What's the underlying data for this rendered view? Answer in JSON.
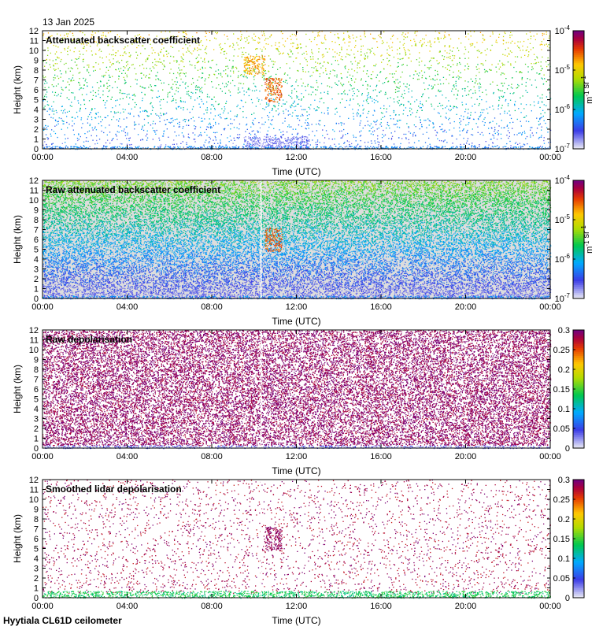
{
  "header": {
    "date": "13 Jan 2025"
  },
  "footer": {
    "site": "Hyytiala CL61D ceilometer"
  },
  "chart_data": [
    {
      "type": "heatmap",
      "title": "Attenuated backscatter coefficient",
      "xlabel": "Time (UTC)",
      "ylabel": "Height (km)",
      "xticks": [
        "00:00",
        "04:00",
        "08:00",
        "12:00",
        "16:00",
        "20:00",
        "00:00"
      ],
      "yticks": [
        "0",
        "1",
        "2",
        "3",
        "4",
        "5",
        "6",
        "7",
        "8",
        "9",
        "10",
        "11",
        "12"
      ],
      "ylim": [
        0,
        12
      ],
      "xlim_hours": [
        0,
        24
      ],
      "colorbar": {
        "scale": "log",
        "ticks": [
          "10^-7",
          "10^-6",
          "10^-5",
          "10^-4"
        ],
        "unit": "m^-1 sr^-1"
      },
      "background": "#ffffff",
      "features": [
        {
          "name": "sparse speckle",
          "t0": 0,
          "t1": 24,
          "h0": 0.3,
          "h1": 12,
          "level": 0.5
        },
        {
          "name": "boundary layer",
          "t0": 9.5,
          "t1": 12.6,
          "h0": 0,
          "h1": 1.3,
          "level": 0.1
        },
        {
          "name": "cloud",
          "t0": 10.5,
          "t1": 11.3,
          "h0": 4.8,
          "h1": 7.2,
          "level": 0.82
        },
        {
          "name": "cloud",
          "t0": 9.5,
          "t1": 10.5,
          "h0": 7.5,
          "h1": 9.5,
          "level": 0.75
        },
        {
          "name": "surface layer",
          "t0": 0,
          "t1": 24,
          "h0": 0,
          "h1": 0.3,
          "level": 0.25
        }
      ]
    },
    {
      "type": "heatmap",
      "title": "Raw attenuated backscatter coefficient",
      "xlabel": "Time (UTC)",
      "ylabel": "Height (km)",
      "xticks": [
        "00:00",
        "04:00",
        "08:00",
        "12:00",
        "16:00",
        "20:00",
        "00:00"
      ],
      "yticks": [
        "0",
        "1",
        "2",
        "3",
        "4",
        "5",
        "6",
        "7",
        "8",
        "9",
        "10",
        "11",
        "12"
      ],
      "ylim": [
        0,
        12
      ],
      "xlim_hours": [
        0,
        24
      ],
      "colorbar": {
        "scale": "log",
        "ticks": [
          "10^-7",
          "10^-6",
          "10^-5",
          "10^-4"
        ],
        "unit": "m^-1 sr^-1"
      },
      "background": "#dddddd",
      "features": [
        {
          "name": "noise",
          "t0": 0,
          "t1": 24,
          "h0": 0,
          "h1": 12,
          "level": 0.35
        },
        {
          "name": "cloud",
          "t0": 10.5,
          "t1": 11.3,
          "h0": 4.8,
          "h1": 7.2,
          "level": 0.82
        },
        {
          "name": "surface layer",
          "t0": 0,
          "t1": 24,
          "h0": 0,
          "h1": 0.3,
          "level": 0.25
        }
      ]
    },
    {
      "type": "heatmap",
      "title": "Raw depolarisation",
      "xlabel": "Time (UTC)",
      "ylabel": "Height (km)",
      "xticks": [
        "00:00",
        "04:00",
        "08:00",
        "12:00",
        "16:00",
        "20:00",
        "00:00"
      ],
      "yticks": [
        "0",
        "1",
        "2",
        "3",
        "4",
        "5",
        "6",
        "7",
        "8",
        "9",
        "10",
        "11",
        "12"
      ],
      "ylim": [
        0,
        12
      ],
      "xlim_hours": [
        0,
        24
      ],
      "colorbar": {
        "scale": "linear",
        "ticks": [
          "0",
          "0.05",
          "0.1",
          "0.15",
          "0.2",
          "0.25",
          "0.3"
        ],
        "unit": ""
      },
      "background": "#ffffff",
      "features": [
        {
          "name": "noise",
          "t0": 0,
          "t1": 24,
          "h0": 0.3,
          "h1": 12,
          "level": 0.98
        },
        {
          "name": "surface layer",
          "t0": 0,
          "t1": 24,
          "h0": 0,
          "h1": 0.3,
          "level": 0.1
        }
      ]
    },
    {
      "type": "heatmap",
      "title": "Smoothed lidar depolarisation",
      "xlabel": "Time (UTC)",
      "ylabel": "Height (km)",
      "xticks": [
        "00:00",
        "04:00",
        "08:00",
        "12:00",
        "16:00",
        "20:00",
        "00:00"
      ],
      "yticks": [
        "0",
        "1",
        "2",
        "3",
        "4",
        "5",
        "6",
        "7",
        "8",
        "9",
        "10",
        "11",
        "12"
      ],
      "ylim": [
        0,
        12
      ],
      "xlim_hours": [
        0,
        24
      ],
      "colorbar": {
        "scale": "linear",
        "ticks": [
          "0",
          "0.05",
          "0.1",
          "0.15",
          "0.2",
          "0.25",
          "0.3"
        ],
        "unit": ""
      },
      "background": "#ffffff",
      "features": [
        {
          "name": "sparse speckle",
          "t0": 0,
          "t1": 24,
          "h0": 0.5,
          "h1": 12,
          "level": 0.95
        },
        {
          "name": "cloud",
          "t0": 10.5,
          "t1": 11.3,
          "h0": 4.8,
          "h1": 7.2,
          "level": 0.97
        },
        {
          "name": "surface layer",
          "t0": 0,
          "t1": 24,
          "h0": 0,
          "h1": 0.7,
          "level": 0.45
        }
      ]
    }
  ]
}
